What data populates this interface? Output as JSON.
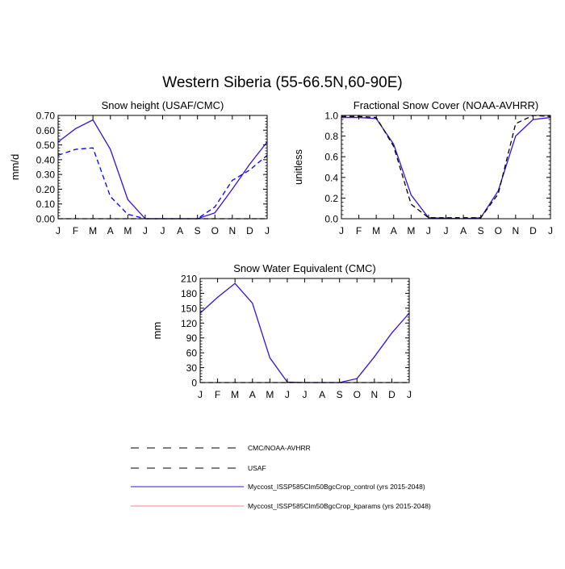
{
  "figure": {
    "title": "Western Siberia (55-66.5N,60-90E)"
  },
  "months": [
    "J",
    "F",
    "M",
    "A",
    "M",
    "J",
    "J",
    "A",
    "S",
    "O",
    "N",
    "D",
    "J"
  ],
  "colors": {
    "control": "#3b0fd6",
    "obs": "#0000ff",
    "obs_black": "#000000",
    "kparams": "#ff8080"
  },
  "legend": {
    "items": [
      {
        "label": "CMC/NOAA-AVHRR",
        "style": "dashed",
        "color": "#000000"
      },
      {
        "label": "USAF",
        "style": "dashed",
        "color": "#000000"
      },
      {
        "label": "Myccost_ISSP585Clm50BgcCrop_control (yrs 2015-2048)",
        "style": "solid",
        "color": "#3b0fd6"
      },
      {
        "label": "Myccost_ISSP585Clm50BgcCrop_kparams (yrs 2015-2048)",
        "style": "solid",
        "color": "#ff8080"
      }
    ]
  },
  "chart_data": [
    {
      "type": "line",
      "title": "Snow height (USAF/CMC)",
      "ylabel": "mm/d",
      "xlabel": "",
      "ylim": [
        0,
        0.7
      ],
      "yticks": [
        0,
        0.1,
        0.2,
        0.3,
        0.4,
        0.5,
        0.6,
        0.7
      ],
      "ytick_labels": [
        "0.00",
        "0.10",
        "0.20",
        "0.30",
        "0.40",
        "0.50",
        "0.60",
        "0.70"
      ],
      "series": [
        {
          "style": "solid",
          "color": "#3b0fd6",
          "values": [
            0.52,
            0.61,
            0.67,
            0.47,
            0.13,
            0.0,
            0.0,
            0.0,
            0.0,
            0.04,
            0.2,
            0.37,
            0.52
          ]
        },
        {
          "style": "dashed",
          "color": "#0000ff",
          "values": [
            0.43,
            0.47,
            0.48,
            0.15,
            0.03,
            0.0,
            0.0,
            0.0,
            0.0,
            0.08,
            0.26,
            0.33,
            0.43
          ]
        },
        {
          "style": "dashed",
          "color": "#000000",
          "values": [
            0,
            0,
            0,
            0,
            0,
            0,
            0,
            0,
            0,
            0,
            0,
            0,
            0
          ]
        }
      ]
    },
    {
      "type": "line",
      "title": "Fractional Snow Cover (NOAA-AVHRR)",
      "ylabel": "unitless",
      "xlabel": "",
      "ylim": [
        0,
        1.0
      ],
      "yticks": [
        0,
        0.2,
        0.4,
        0.6,
        0.8,
        1.0
      ],
      "ytick_labels": [
        "0.0",
        "0.2",
        "0.4",
        "0.6",
        "0.8",
        "1.0"
      ],
      "series": [
        {
          "style": "solid",
          "color": "#3b0fd6",
          "values": [
            0.98,
            0.98,
            0.97,
            0.72,
            0.23,
            0.01,
            0.005,
            0.0,
            0.01,
            0.27,
            0.8,
            0.96,
            0.98
          ]
        },
        {
          "style": "dashed",
          "color": "#000000",
          "values": [
            0.99,
            0.99,
            0.98,
            0.7,
            0.14,
            0.01,
            0.01,
            0.01,
            0.01,
            0.24,
            0.92,
            1.0,
            0.99
          ]
        }
      ]
    },
    {
      "type": "line",
      "title": "Snow Water Equivalent (CMC)",
      "ylabel": "mm",
      "xlabel": "",
      "ylim": [
        0,
        210
      ],
      "yticks": [
        0,
        30,
        60,
        90,
        120,
        150,
        180,
        210
      ],
      "ytick_labels": [
        "0",
        "30",
        "60",
        "90",
        "120",
        "150",
        "180",
        "210"
      ],
      "series": [
        {
          "style": "solid",
          "color": "#3b0fd6",
          "values": [
            140,
            172,
            200,
            160,
            50,
            1,
            0,
            0,
            0,
            8,
            52,
            100,
            140
          ]
        },
        {
          "style": "dashed",
          "color": "#000000",
          "values": [
            0,
            0,
            0,
            0,
            0,
            0,
            0,
            0,
            0,
            0,
            0,
            0,
            0
          ]
        }
      ]
    }
  ]
}
